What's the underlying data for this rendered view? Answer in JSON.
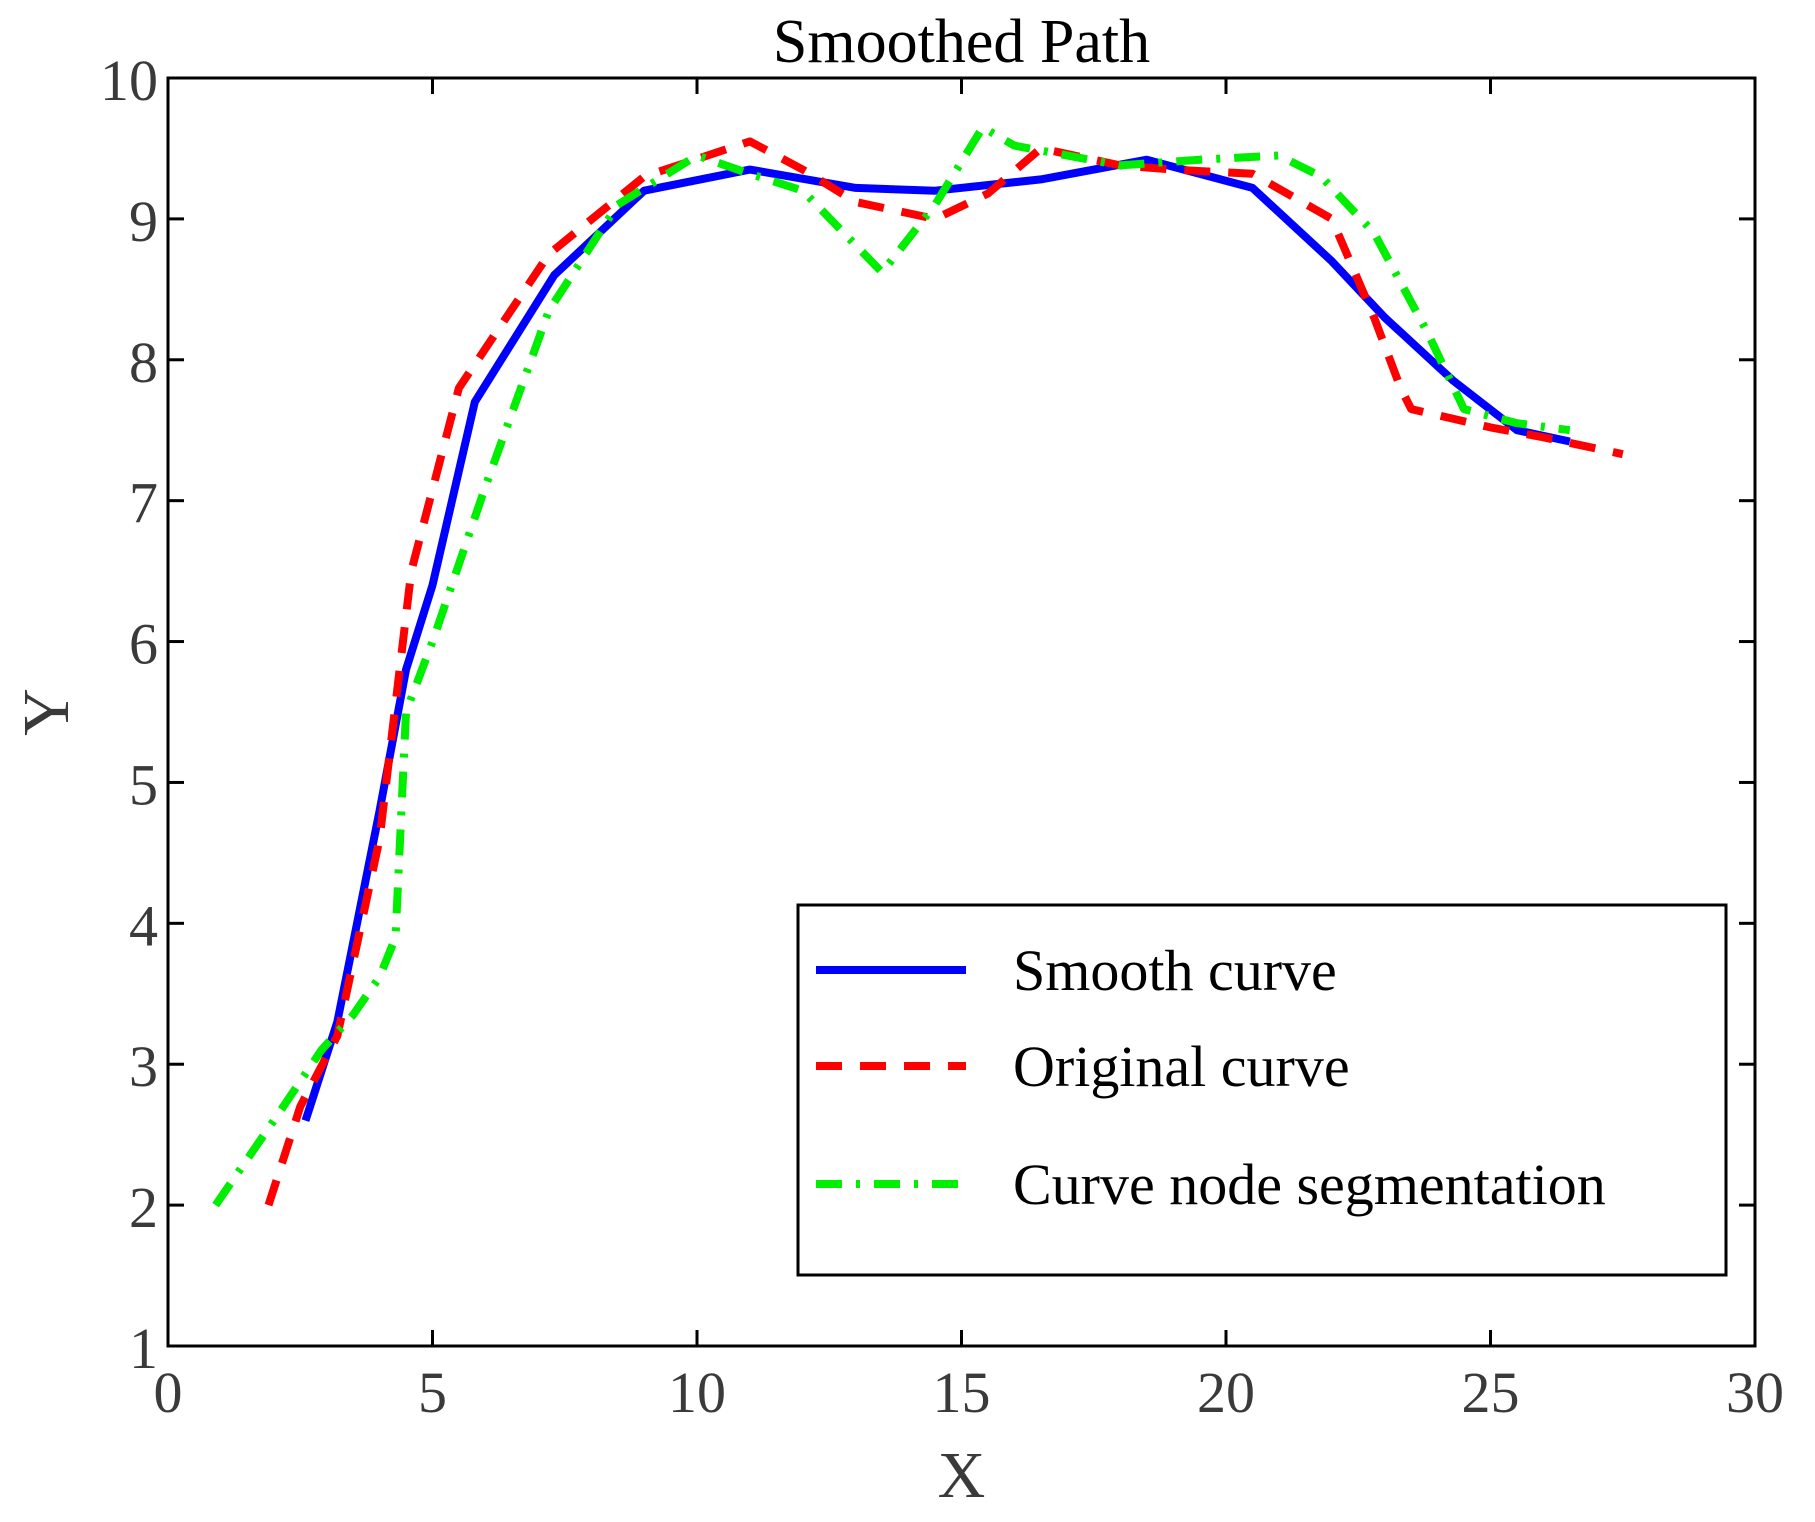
{
  "chart_data": {
    "type": "line",
    "title": "Smoothed Path",
    "xlabel": "X",
    "ylabel": "Y",
    "xlim": [
      0,
      30
    ],
    "ylim": [
      1,
      10
    ],
    "xticks": [
      0,
      5,
      10,
      15,
      20,
      25,
      30
    ],
    "yticks": [
      1,
      2,
      3,
      4,
      5,
      6,
      7,
      8,
      9,
      10
    ],
    "grid": false,
    "legend_position": "lower-right",
    "series": [
      {
        "name": "Smooth curve",
        "color": "#0000ff",
        "style": "solid",
        "x": [
          2.6,
          3.2,
          4.0,
          4.5,
          5.0,
          5.8,
          7.3,
          9.0,
          11.0,
          13.0,
          14.5,
          16.5,
          18.5,
          20.5,
          22.0,
          23.0,
          24.3,
          25.5,
          26.5
        ],
        "y": [
          2.6,
          3.3,
          4.8,
          5.8,
          6.4,
          7.7,
          8.6,
          9.2,
          9.35,
          9.22,
          9.2,
          9.28,
          9.42,
          9.22,
          8.7,
          8.3,
          7.85,
          7.5,
          7.42
        ]
      },
      {
        "name": "Original curve",
        "color": "#ff0000",
        "style": "dashed",
        "x": [
          1.9,
          2.5,
          3.2,
          4.0,
          4.6,
          5.5,
          7.2,
          9.0,
          11.0,
          12.0,
          13.0,
          14.5,
          15.5,
          16.5,
          18.0,
          19.0,
          20.5,
          22.0,
          22.8,
          23.3,
          23.5,
          25.0,
          26.0,
          27.5
        ],
        "y": [
          2.0,
          2.7,
          3.2,
          4.6,
          6.5,
          7.8,
          8.75,
          9.3,
          9.55,
          9.35,
          9.12,
          9.0,
          9.18,
          9.5,
          9.38,
          9.35,
          9.32,
          9.0,
          8.3,
          7.8,
          7.65,
          7.52,
          7.45,
          7.33
        ]
      },
      {
        "name": "Curve node segmentation",
        "color": "#00ee00",
        "style": "dash-dot",
        "x": [
          0.9,
          2.0,
          2.9,
          3.5,
          4.0,
          4.3,
          4.5,
          5.0,
          6.0,
          7.2,
          8.5,
          10.0,
          11.0,
          12.0,
          13.5,
          14.5,
          15.4,
          16.0,
          18.0,
          19.5,
          21.0,
          21.8,
          22.8,
          23.8,
          24.5,
          25.5,
          26.5
        ],
        "y": [
          2.0,
          2.6,
          3.1,
          3.35,
          3.62,
          3.9,
          5.5,
          6.0,
          7.1,
          8.35,
          9.1,
          9.45,
          9.32,
          9.2,
          8.62,
          9.1,
          9.65,
          9.52,
          9.38,
          9.42,
          9.45,
          9.3,
          8.9,
          8.2,
          7.65,
          7.55,
          7.5
        ]
      }
    ]
  }
}
